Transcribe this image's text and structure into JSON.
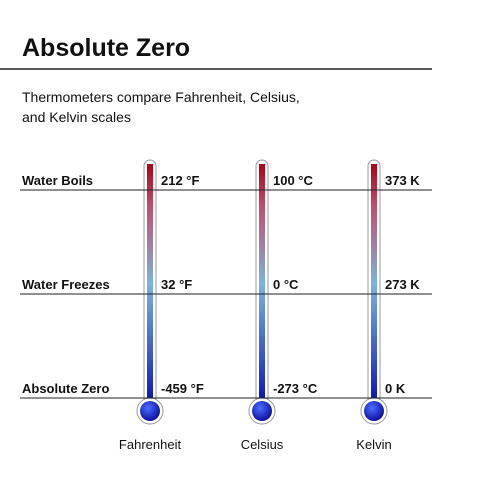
{
  "title": "Absolute Zero",
  "subtitle": [
    "Thermometers compare Fahrenheit, Celsius,",
    "and Kelvin scales"
  ],
  "rows": [
    "Water Boils",
    "Water Freezes",
    "Absolute Zero"
  ],
  "thermometers": [
    {
      "name": "Fahrenheit",
      "readings": [
        "212 °F",
        "32 °F",
        "-459 °F"
      ]
    },
    {
      "name": "Celsius",
      "readings": [
        "100 °C",
        "0 °C",
        "-273 °C"
      ]
    },
    {
      "name": "Kelvin",
      "readings": [
        "373 K",
        "273 K",
        "0 K"
      ]
    }
  ]
}
